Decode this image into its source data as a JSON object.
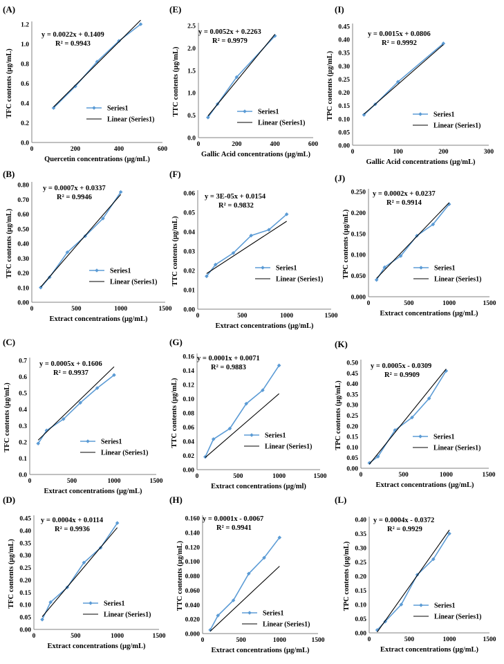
{
  "colors": {
    "series": "#5b9bd5",
    "trend": "#000000",
    "axis": "#808080"
  },
  "chart_data": [
    {
      "id": "A",
      "label": "(A)",
      "type": "scatter",
      "title": "",
      "xlabel": "Quercetin concentrations (µg/mL)",
      "ylabel": "TFC contents (µg/mL)",
      "xlim": [
        0,
        600
      ],
      "ylim": [
        0,
        1.2
      ],
      "xstep": 200,
      "ystep": 0.2,
      "ydec": 1,
      "eq": "y = 0.0022x + 0.1409",
      "r2": "R² = 0.9943",
      "series": [
        {
          "name": "Series1",
          "x": [
            100,
            200,
            300,
            400,
            500
          ],
          "y": [
            0.35,
            0.57,
            0.82,
            1.03,
            1.2
          ]
        }
      ],
      "trendline": {
        "name": "Linear (Series1)",
        "slope": 0.0022,
        "intercept": 0.1409
      },
      "legend": [
        "Series1",
        "Linear (Series1)"
      ]
    },
    {
      "id": "E",
      "label": "(E)",
      "type": "scatter",
      "title": "",
      "xlabel": "Gallic Acid concentrations (µg/mL)",
      "ylabel": "TTC contents (µg/mL)",
      "xlim": [
        0,
        600
      ],
      "ylim": [
        0,
        2.5
      ],
      "xstep": 200,
      "ystep": 0.5,
      "ydec": 1,
      "eq": "y = 0.0052x + 0.2263",
      "r2": "R² = 0.9979",
      "series": [
        {
          "name": "Series1",
          "x": [
            50,
            100,
            200,
            400
          ],
          "y": [
            0.45,
            0.75,
            1.35,
            2.27
          ]
        }
      ],
      "trendline": {
        "name": "Linear (Series1)",
        "slope": 0.0052,
        "intercept": 0.2263
      },
      "legend": [
        "Series1",
        "Linear (Series1)"
      ]
    },
    {
      "id": "I",
      "label": "(I)",
      "type": "scatter",
      "title": "",
      "xlabel": "Gallic Acid concentrations (µg/mL)",
      "ylabel": "TPC contents (µg/mL)",
      "xlim": [
        0,
        300
      ],
      "ylim": [
        0,
        0.45
      ],
      "xstep": 100,
      "ystep": 0.05,
      "ydec": 2,
      "eq": "y = 0.0015x + 0.0806",
      "r2": "R² = 0.9992",
      "series": [
        {
          "name": "Series1",
          "x": [
            25,
            50,
            100,
            200
          ],
          "y": [
            0.115,
            0.155,
            0.24,
            0.385
          ]
        }
      ],
      "trendline": {
        "name": "Linear (Series1)",
        "slope": 0.0015,
        "intercept": 0.0806
      },
      "legend": [
        "Series1",
        "Linear (Series1)"
      ]
    },
    {
      "id": "B",
      "label": "(B)",
      "type": "scatter",
      "title": "",
      "xlabel": "Extract concentrations (µg/mL)",
      "ylabel": "TFC contents (µg/mL)",
      "xlim": [
        0,
        1500
      ],
      "ylim": [
        0,
        0.8
      ],
      "xstep": 500,
      "ystep": 0.1,
      "ydec": 2,
      "eq": "y = 0.0007x + 0.0337",
      "r2": "R² = 0.9946",
      "series": [
        {
          "name": "Series1",
          "x": [
            100,
            200,
            400,
            600,
            800,
            1000
          ],
          "y": [
            0.1,
            0.17,
            0.34,
            0.45,
            0.57,
            0.75
          ]
        }
      ],
      "trendline": {
        "name": "Linear (Series1)",
        "slope": 0.0007,
        "intercept": 0.0337
      },
      "legend": [
        "Series1",
        "Linear (Series1)"
      ]
    },
    {
      "id": "F",
      "label": "(F)",
      "type": "scatter",
      "title": "",
      "xlabel": "Extract concentrations (µg/mL)",
      "ylabel": "TTC contents (µg/mL)",
      "xlim": [
        0,
        1500
      ],
      "ylim": [
        0,
        0.06
      ],
      "xstep": 500,
      "ystep": 0.01,
      "ydec": 2,
      "eq": "y = 3E-05x + 0.0154",
      "r2": "R² = 0.9832",
      "series": [
        {
          "name": "Series1",
          "x": [
            100,
            200,
            400,
            600,
            800,
            1000
          ],
          "y": [
            0.017,
            0.023,
            0.029,
            0.038,
            0.041,
            0.049
          ]
        }
      ],
      "trendline": {
        "name": "Linear (Series1)",
        "slope": 3e-05,
        "intercept": 0.0154
      },
      "legend": [
        "Series1",
        "Linear (Series1)"
      ]
    },
    {
      "id": "J",
      "label": "(J)",
      "type": "scatter",
      "title": "",
      "xlabel": "Extract concentrations (µg/mL)",
      "ylabel": "TPC contents (µg/mL)",
      "xlim": [
        0,
        1500
      ],
      "ylim": [
        0,
        0.25
      ],
      "xstep": 500,
      "ystep": 0.05,
      "ydec": 3,
      "eq": "y = 0.0002x + 0.0237",
      "r2": "R² = 0.9914",
      "series": [
        {
          "name": "Series1",
          "x": [
            100,
            200,
            400,
            600,
            800,
            1000
          ],
          "y": [
            0.04,
            0.07,
            0.097,
            0.145,
            0.172,
            0.22
          ]
        }
      ],
      "trendline": {
        "name": "Linear (Series1)",
        "slope": 0.0002,
        "intercept": 0.0237
      },
      "legend": [
        "Series1",
        "Linear (Series1)"
      ]
    },
    {
      "id": "C",
      "label": "(C)",
      "type": "scatter",
      "title": "",
      "xlabel": "Extract concentrations (µg/mL)",
      "ylabel": "TFC contents (µg/mL)",
      "xlim": [
        0,
        1500
      ],
      "ylim": [
        0,
        0.7
      ],
      "xstep": 500,
      "ystep": 0.1,
      "ydec": 1,
      "eq": "y = 0.0005x + 0.1606",
      "r2": "R² = 0.9937",
      "series": [
        {
          "name": "Series1",
          "x": [
            100,
            200,
            400,
            600,
            800,
            1000
          ],
          "y": [
            0.19,
            0.27,
            0.34,
            0.44,
            0.53,
            0.61
          ]
        }
      ],
      "trendline": {
        "name": "Linear (Series1)",
        "slope": 0.0005,
        "intercept": 0.1606
      },
      "legend": [
        "Series1",
        "Linear (Series1)"
      ]
    },
    {
      "id": "G",
      "label": "(G)",
      "type": "scatter",
      "title": "",
      "xlabel": "Extract concentrations  (µg/ml)",
      "ylabel": "TTC contents (µg/mL)",
      "xlim": [
        0,
        1500
      ],
      "ylim": [
        0,
        0.16
      ],
      "xstep": 500,
      "ystep": 0.02,
      "ydec": 2,
      "eq": "y = 0.0001x + 0.0071",
      "r2": "R² = 0.9883",
      "series": [
        {
          "name": "Series1",
          "x": [
            100,
            200,
            400,
            600,
            800,
            1000
          ],
          "y": [
            0.018,
            0.043,
            0.058,
            0.093,
            0.112,
            0.147
          ]
        }
      ],
      "trendline": {
        "name": "Linear (Series1)",
        "slope": 0.0001,
        "intercept": 0.0071
      },
      "legend": [
        "Series1",
        "Linear (Series1)"
      ]
    },
    {
      "id": "K",
      "label": "(K)",
      "type": "scatter",
      "title": "",
      "xlabel": "Extract concentrations (µg/mL)",
      "ylabel": "TPC contents (µg/mL)",
      "xlim": [
        0,
        1500
      ],
      "ylim": [
        0,
        0.5
      ],
      "xstep": 500,
      "ystep": 0.05,
      "ydec": 2,
      "eq": "y = 0.0005x - 0.0309",
      "r2": "R² = 0.9909",
      "series": [
        {
          "name": "Series1",
          "x": [
            100,
            200,
            400,
            600,
            800,
            1000
          ],
          "y": [
            0.025,
            0.055,
            0.18,
            0.24,
            0.33,
            0.46
          ]
        }
      ],
      "trendline": {
        "name": "Linear (Series1)",
        "slope": 0.0005,
        "intercept": -0.0309
      },
      "legend": [
        "Series1",
        "Linear (Series1)"
      ]
    },
    {
      "id": "D",
      "label": "(D)",
      "type": "scatter",
      "title": "",
      "xlabel": "Extract concentrations (µg/mL)",
      "ylabel": "TFC contents (µg/mL)",
      "xlim": [
        0,
        1500
      ],
      "ylim": [
        0,
        0.45
      ],
      "xstep": 500,
      "ystep": 0.05,
      "ydec": 2,
      "eq": "y = 0.0004x + 0.0114",
      "r2": "R² = 0.9936",
      "series": [
        {
          "name": "Series1",
          "x": [
            100,
            200,
            400,
            600,
            800,
            1000
          ],
          "y": [
            0.04,
            0.11,
            0.17,
            0.27,
            0.33,
            0.43
          ]
        }
      ],
      "trendline": {
        "name": "Linear (Series1)",
        "slope": 0.0004,
        "intercept": 0.0114
      },
      "legend": [
        "Series1",
        "Linear (Series1)"
      ]
    },
    {
      "id": "H",
      "label": "(H)",
      "type": "scatter",
      "title": "",
      "xlabel": "Extract concentrations (µg/mL)",
      "ylabel": "TTC contents (µg/mL)",
      "xlim": [
        0,
        1500
      ],
      "ylim": [
        0,
        0.16
      ],
      "xstep": 500,
      "ystep": 0.02,
      "ydec": 3,
      "eq": "y = 0.0001x - 0.0067",
      "r2": "R² = 0.9941",
      "series": [
        {
          "name": "Series1",
          "x": [
            100,
            200,
            400,
            600,
            800,
            1000
          ],
          "y": [
            0.005,
            0.025,
            0.046,
            0.083,
            0.105,
            0.133
          ]
        }
      ],
      "trendline": {
        "name": "Linear (Series1)",
        "slope": 0.0001,
        "intercept": -0.0067
      },
      "legend": [
        "Series1",
        "Linear (Series1)"
      ]
    },
    {
      "id": "L",
      "label": "(L)",
      "type": "scatter",
      "title": "",
      "xlabel": "Extract concentrations (µg/mL)",
      "ylabel": "TPC contents (µg/mL)",
      "xlim": [
        0,
        1500
      ],
      "ylim": [
        0,
        0.4
      ],
      "xstep": 500,
      "ystep": 0.05,
      "ydec": 2,
      "eq": "y = 0.0004x - 0.0372",
      "r2": "R² = 0.9929",
      "series": [
        {
          "name": "Series1",
          "x": [
            100,
            200,
            400,
            600,
            800,
            1000
          ],
          "y": [
            0.01,
            0.04,
            0.1,
            0.205,
            0.26,
            0.35
          ]
        }
      ],
      "trendline": {
        "name": "Linear (Series1)",
        "slope": 0.0004,
        "intercept": -0.0372
      },
      "legend": [
        "Series1",
        "Linear (Series1)"
      ]
    }
  ]
}
